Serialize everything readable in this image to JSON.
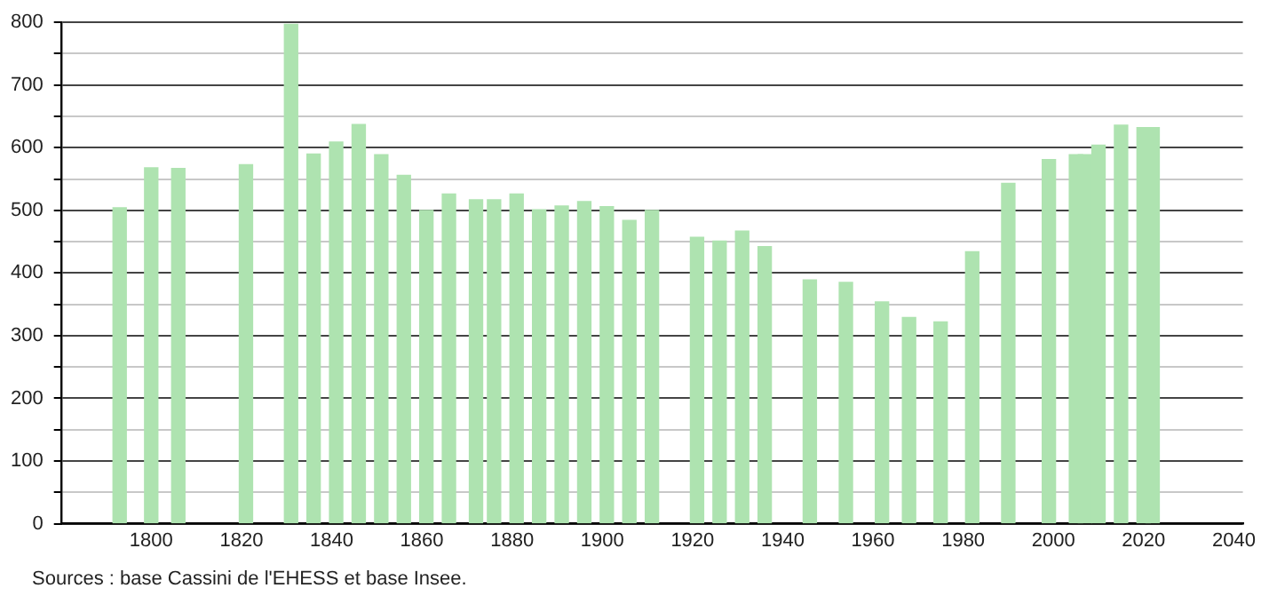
{
  "chart_data": {
    "type": "bar",
    "x": [
      1793,
      1800,
      1806,
      1821,
      1831,
      1836,
      1841,
      1846,
      1851,
      1856,
      1861,
      1866,
      1872,
      1876,
      1881,
      1886,
      1891,
      1896,
      1901,
      1906,
      1911,
      1921,
      1926,
      1931,
      1936,
      1946,
      1954,
      1962,
      1968,
      1975,
      1982,
      1990,
      1999,
      2005,
      2007,
      2010,
      2015,
      2020,
      2022
    ],
    "values": [
      504,
      568,
      567,
      573,
      797,
      590,
      609,
      637,
      589,
      556,
      500,
      526,
      517,
      517,
      526,
      501,
      507,
      514,
      506,
      484,
      500,
      457,
      451,
      467,
      442,
      389,
      385,
      354,
      329,
      322,
      434,
      543,
      581,
      589,
      589,
      604,
      636,
      632,
      632
    ],
    "color": "#aee3b0",
    "xlim": [
      1780,
      2042
    ],
    "xticks": [
      1800,
      1820,
      1840,
      1860,
      1880,
      1900,
      1920,
      1940,
      1960,
      1980,
      2000,
      2020,
      2040
    ],
    "ylim": [
      0,
      800
    ],
    "yticks": [
      0,
      {
        "value": 50,
        "label": null
      },
      100,
      {
        "value": 150,
        "label": null
      },
      200,
      {
        "value": 250,
        "label": null
      },
      300,
      {
        "value": 350,
        "label": null
      },
      400,
      {
        "value": 450,
        "label": null
      },
      500,
      {
        "value": 550,
        "label": null
      },
      600,
      {
        "value": 650,
        "label": null
      },
      700,
      {
        "value": 750,
        "label": null
      },
      800
    ],
    "grid": "y",
    "annotations": [
      "Sources : base Cassini de l'EHESS et base Insee."
    ]
  }
}
